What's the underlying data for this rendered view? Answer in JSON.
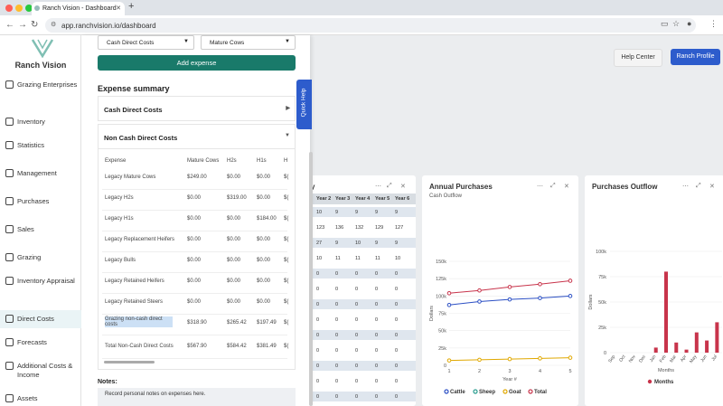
{
  "browser": {
    "tab_title": "Ranch Vision - Dashboard",
    "url": "app.ranchvision.io/dashboard"
  },
  "brand": {
    "name": "Ranch Vision"
  },
  "sidebar": {
    "items": [
      {
        "label": "Grazing Enterprises",
        "icon": "grid-icon"
      },
      {
        "label": "Inventory",
        "icon": "inventory-icon"
      },
      {
        "label": "Statistics",
        "icon": "chart-icon"
      },
      {
        "label": "Management",
        "icon": "management-icon"
      },
      {
        "label": "Purchases",
        "icon": "cart-icon"
      },
      {
        "label": "Sales",
        "icon": "sales-icon"
      },
      {
        "label": "Grazing",
        "icon": "grazing-icon"
      },
      {
        "label": "Inventory Appraisal",
        "icon": "appraisal-icon"
      },
      {
        "label": "Direct Costs",
        "icon": "costs-icon"
      },
      {
        "label": "Forecasts",
        "icon": "forecast-icon"
      },
      {
        "label": "Additional Costs & Income",
        "icon": "plus-icon"
      },
      {
        "label": "Assets",
        "icon": "assets-icon"
      }
    ]
  },
  "header": {
    "help_center": "Help Center",
    "ranch_profile": "Ranch Profile"
  },
  "panel": {
    "select1": "Cash Direct Costs",
    "select2": "Mature Cows",
    "add_expense": "Add expense",
    "summary_title": "Expense summary",
    "cash_section": "Cash Direct Costs",
    "noncash_section": "Non Cash Direct Costs",
    "quick_help": "Quick Help",
    "table": {
      "headers": [
        "Expense",
        "Mature Cows",
        "H2s",
        "H1s",
        "H"
      ],
      "rows": [
        [
          "Legacy Mature Cows",
          "$249.00",
          "$0.00",
          "$0.00",
          "$("
        ],
        [
          "Legacy H2s",
          "$0.00",
          "$319.00",
          "$0.00",
          "$("
        ],
        [
          "Legacy H1s",
          "$0.00",
          "$0.00",
          "$184.00",
          "$("
        ],
        [
          "Legacy Replacement Heifers",
          "$0.00",
          "$0.00",
          "$0.00",
          "$("
        ],
        [
          "Legacy Bulls",
          "$0.00",
          "$0.00",
          "$0.00",
          "$("
        ],
        [
          "Legacy Retained Heifers",
          "$0.00",
          "$0.00",
          "$0.00",
          "$("
        ],
        [
          "Legacy Retained Steers",
          "$0.00",
          "$0.00",
          "$0.00",
          "$("
        ],
        [
          "Grazing non-cash direct costs",
          "$318.90",
          "$265.42",
          "$197.49",
          "$("
        ],
        [
          "Total Non-Cash Direct Costs",
          "$567.90",
          "$584.42",
          "$381.49",
          "$("
        ]
      ]
    },
    "notes_label": "Notes:",
    "notes_placeholder": "Record personal notes on expenses here."
  },
  "grid": {
    "title_fragment": "y",
    "headers": [
      "Year 2",
      "Year 3",
      "Year 4",
      "Year 5",
      "Year 6"
    ],
    "rows": [
      [
        "10",
        "9",
        "9",
        "9",
        "9"
      ],
      [
        "123",
        "136",
        "132",
        "129",
        "127"
      ],
      [
        "27",
        "9",
        "10",
        "9",
        "9"
      ],
      [
        "10",
        "11",
        "11",
        "11",
        "10"
      ],
      [
        "0",
        "0",
        "0",
        "0",
        "0"
      ],
      [
        "0",
        "0",
        "0",
        "0",
        "0"
      ],
      [
        "0",
        "0",
        "0",
        "0",
        "0"
      ],
      [
        "0",
        "0",
        "0",
        "0",
        "0"
      ],
      [
        "0",
        "0",
        "0",
        "0",
        "0"
      ],
      [
        "0",
        "0",
        "0",
        "0",
        "0"
      ],
      [
        "0",
        "0",
        "0",
        "0",
        "0"
      ],
      [
        "0",
        "0",
        "0",
        "0",
        "0"
      ],
      [
        "0",
        "0",
        "0",
        "0",
        "0"
      ]
    ]
  },
  "annual": {
    "title": "Annual Purchases",
    "subtitle": "Cash Outflow",
    "ylabel": "Dollars",
    "xlabel": "Year #",
    "yticks": [
      "150k",
      "125k",
      "100k",
      "75k",
      "50k",
      "25k",
      "0"
    ],
    "xticks": [
      "1",
      "2",
      "3",
      "4",
      "5"
    ]
  },
  "outflow": {
    "title": "Purchases Outflow",
    "ylabel": "Dollars",
    "xlabel": "Months",
    "yticks": [
      "100k",
      "75k",
      "50k",
      "25k",
      "0"
    ],
    "months": [
      "Sep",
      "Oct",
      "Nov",
      "Dec",
      "Jan",
      "Feb",
      "Mar",
      "Apr",
      "May",
      "Jun",
      "Jul"
    ]
  },
  "chart_data": [
    {
      "type": "line",
      "title": "Annual Purchases",
      "subtitle": "Cash Outflow",
      "xlabel": "Year #",
      "ylabel": "Dollars",
      "x": [
        1,
        2,
        3,
        4,
        5
      ],
      "ylim": [
        0,
        150000
      ],
      "series": [
        {
          "name": "Cattle",
          "color": "#2b4fc4",
          "values": [
            87000,
            92000,
            95000,
            97000,
            100000
          ]
        },
        {
          "name": "Sheep",
          "color": "#2a9d8f",
          "values": [
            0,
            0,
            0,
            0,
            0
          ]
        },
        {
          "name": "Goat",
          "color": "#e0a800",
          "values": [
            7000,
            8000,
            9000,
            10000,
            11000
          ]
        },
        {
          "name": "Total",
          "color": "#c8344b",
          "values": [
            104000,
            108000,
            113000,
            117000,
            122000
          ]
        }
      ]
    },
    {
      "type": "bar",
      "title": "Purchases Outflow",
      "xlabel": "Months",
      "ylabel": "Dollars",
      "ylim": [
        0,
        100000
      ],
      "categories": [
        "Sep",
        "Oct",
        "Nov",
        "Dec",
        "Jan",
        "Feb",
        "Mar",
        "Apr",
        "May",
        "Jun",
        "Jul"
      ],
      "series": [
        {
          "name": "Months",
          "color": "#c8344b",
          "values": [
            0,
            0,
            0,
            0,
            5000,
            80000,
            10000,
            3000,
            20000,
            12000,
            30000
          ]
        }
      ]
    }
  ]
}
